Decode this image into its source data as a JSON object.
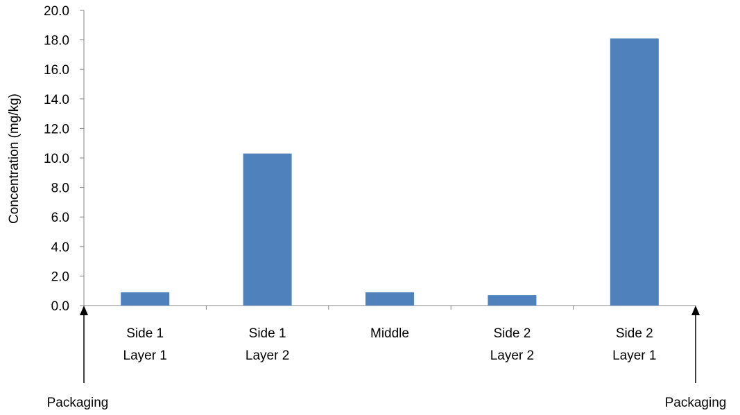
{
  "chart_data": {
    "type": "bar",
    "title": "",
    "xlabel": "",
    "ylabel": "Concentration (mg/kg)",
    "ylim": [
      0,
      20
    ],
    "yticks": [
      "0.0",
      "2.0",
      "4.0",
      "6.0",
      "8.0",
      "10.0",
      "12.0",
      "14.0",
      "16.0",
      "18.0",
      "20.0"
    ],
    "categories": [
      [
        "Side 1",
        "Layer 1"
      ],
      [
        "Side 1",
        "Layer 2"
      ],
      [
        "Middle"
      ],
      [
        "Side 2",
        "Layer 2"
      ],
      [
        "Side 2",
        "Layer 1"
      ]
    ],
    "values": [
      0.9,
      10.3,
      0.9,
      0.7,
      18.1
    ],
    "bar_color": "#4f81bd",
    "grid": false,
    "legend": "none",
    "annotations": {
      "left": "Packaging",
      "right": "Packaging"
    }
  }
}
